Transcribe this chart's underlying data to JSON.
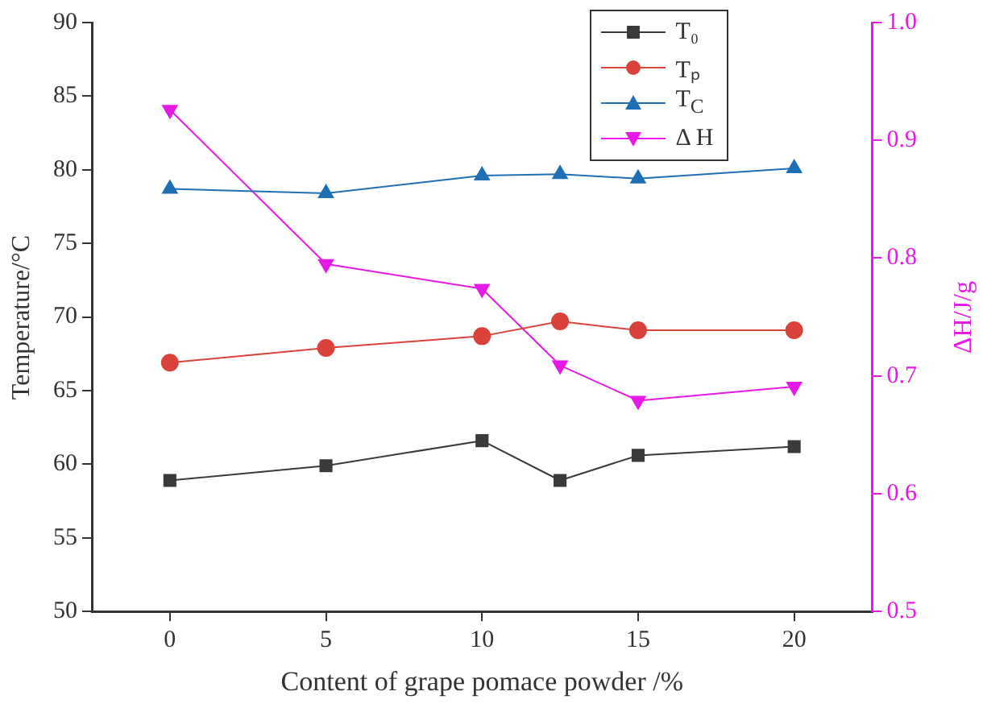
{
  "chart_data": {
    "type": "line",
    "xlabel": "Content of grape pomace powder /%",
    "ylabel": "Temperature/°C",
    "y2label": "ΔH/J/g",
    "x": [
      0,
      5,
      10,
      12.5,
      15,
      20
    ],
    "series": [
      {
        "name": "T₀",
        "color": "#3a3a3a",
        "marker": "square",
        "values": [
          58.9,
          59.9,
          61.6,
          58.9,
          60.6,
          61.2
        ]
      },
      {
        "name": "Tₚ",
        "color": "#d9423a",
        "marker": "circle",
        "values": [
          66.9,
          67.9,
          68.7,
          69.7,
          69.1,
          69.1
        ]
      },
      {
        "name": "T$_{C}$",
        "color": "#1f6fb5",
        "marker": "triangle",
        "values": [
          78.7,
          78.4,
          79.6,
          79.7,
          79.4,
          80.1
        ]
      },
      {
        "name": "Δ H",
        "color": "#e619e6",
        "marker": "triangle_down",
        "axis": "y2",
        "values": [
          0.926,
          0.795,
          0.774,
          0.709,
          0.679,
          0.691
        ]
      }
    ],
    "xlim": [
      -2.5,
      22.5
    ],
    "xticks": [
      0,
      5,
      10,
      15,
      20
    ],
    "ylim": [
      50,
      90
    ],
    "yticks": [
      50,
      55,
      60,
      65,
      70,
      75,
      80,
      85,
      90
    ],
    "y2lim": [
      0.5,
      1.0
    ],
    "y2ticks": [
      {
        "value": 0.5,
        "label": "0.5"
      },
      {
        "value": 0.6,
        "label": "0.6"
      },
      {
        "value": 0.7,
        "label": "0.7"
      },
      {
        "value": 0.8,
        "label": "0.8"
      },
      {
        "value": 0.9,
        "label": "0.9"
      },
      {
        "value": 1.0,
        "label": "1.0"
      }
    ],
    "grid": false,
    "legend": "top right",
    "line_style": "solid"
  }
}
